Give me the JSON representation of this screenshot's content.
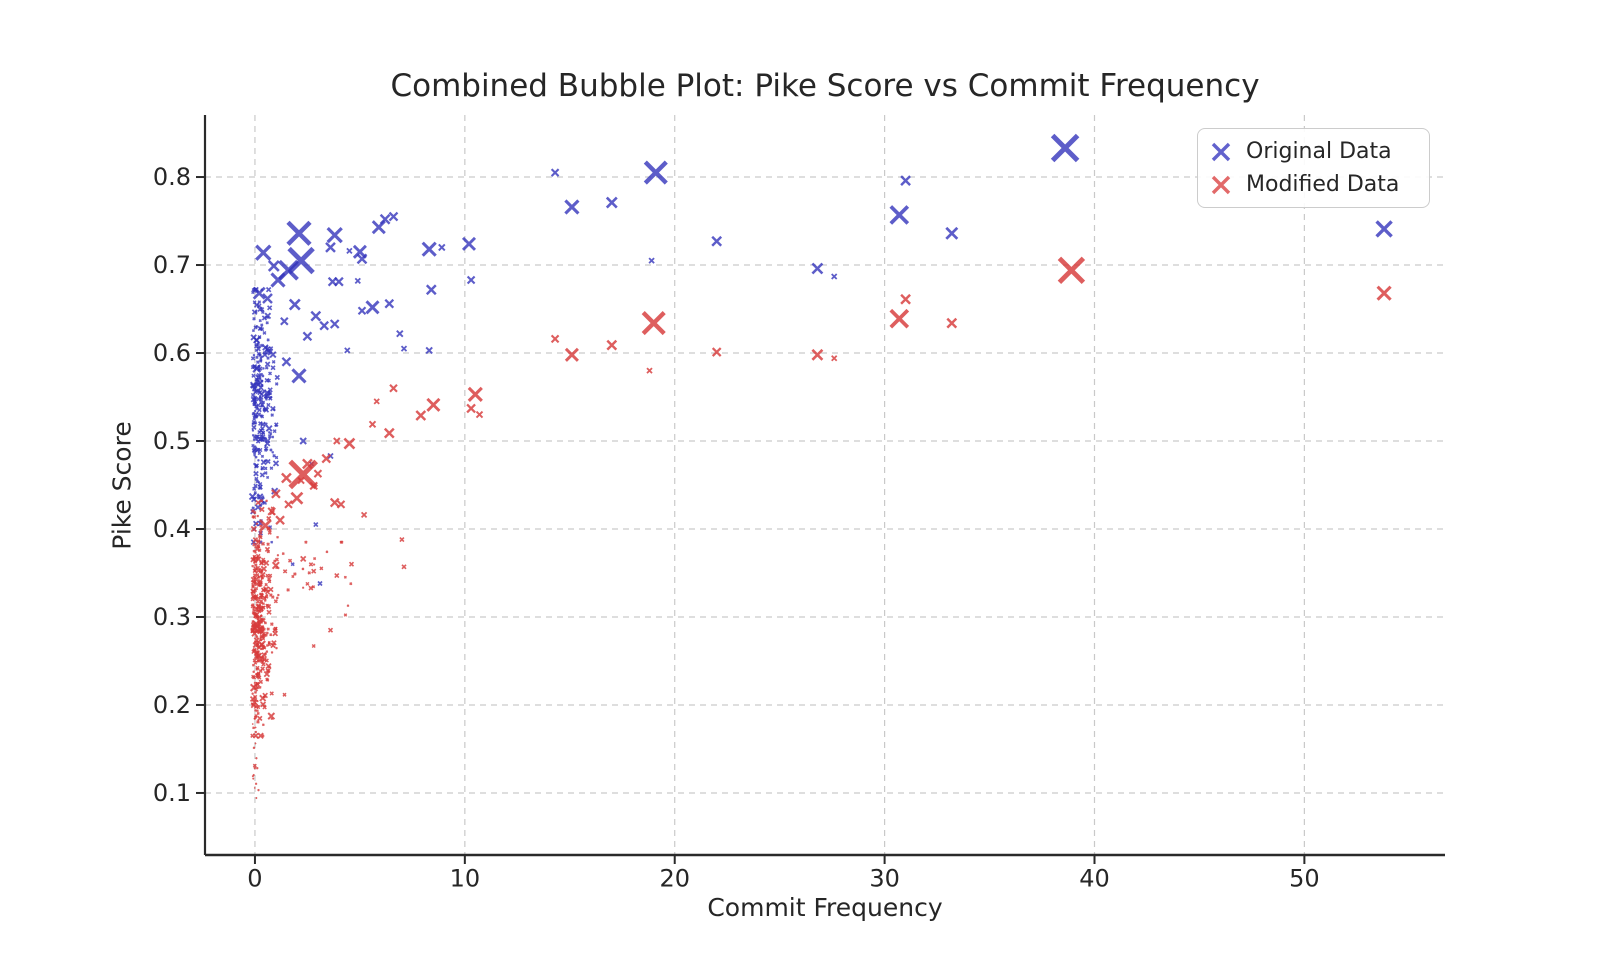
{
  "chart_data": {
    "type": "scatter",
    "title": "Combined Bubble Plot: Pike Score vs Commit Frequency",
    "xlabel": "Commit Frequency",
    "ylabel": "Pike Score",
    "axes": {
      "xlim": [
        -2.38,
        56.7
      ],
      "ylim": [
        0.0295,
        0.8705
      ],
      "x_tick_values": [
        0,
        10,
        20,
        30,
        40,
        50
      ],
      "x_tick_labels": [
        "0",
        "10",
        "20",
        "30",
        "40",
        "50"
      ],
      "y_tick_values": [
        0.1,
        0.2,
        0.3,
        0.4,
        0.5,
        0.6,
        0.7,
        0.8
      ],
      "y_tick_labels": [
        "0.1",
        "0.2",
        "0.3",
        "0.4",
        "0.5",
        "0.6",
        "0.7",
        "0.8"
      ],
      "grid": true,
      "grid_color": "#c9c9c9",
      "spine_color": "#2a2a2a"
    },
    "legend": {
      "position": "upper right",
      "items": [
        {
          "label": "Original Data",
          "color": "#4646c4",
          "marker": "x"
        },
        {
          "label": "Modified Data",
          "color": "#dd4f4f",
          "marker": "x"
        }
      ]
    },
    "series": [
      {
        "name": "Original Data",
        "color": "#3434bb",
        "opacity": 0.8,
        "marker": "x",
        "points": [
          [
            38.6,
            0.833,
            25
          ],
          [
            19.1,
            0.805,
            21
          ],
          [
            14.3,
            0.805,
            7
          ],
          [
            15.1,
            0.766,
            13
          ],
          [
            17.0,
            0.771,
            10
          ],
          [
            22.0,
            0.727,
            9
          ],
          [
            18.9,
            0.705,
            5
          ],
          [
            26.8,
            0.696,
            10
          ],
          [
            27.6,
            0.687,
            5
          ],
          [
            31.0,
            0.796,
            9
          ],
          [
            30.7,
            0.757,
            17
          ],
          [
            33.2,
            0.736,
            11
          ],
          [
            53.8,
            0.741,
            15
          ],
          [
            6.2,
            0.752,
            9
          ],
          [
            5.9,
            0.743,
            12
          ],
          [
            6.6,
            0.755,
            8
          ],
          [
            3.8,
            0.734,
            14
          ],
          [
            2.1,
            0.736,
            22
          ],
          [
            3.6,
            0.72,
            9
          ],
          [
            4.5,
            0.716,
            5
          ],
          [
            5.0,
            0.715,
            12
          ],
          [
            5.1,
            0.707,
            9
          ],
          [
            8.3,
            0.718,
            13
          ],
          [
            8.9,
            0.72,
            6
          ],
          [
            10.2,
            0.724,
            12
          ],
          [
            3.7,
            0.681,
            8
          ],
          [
            4.0,
            0.681,
            8
          ],
          [
            4.9,
            0.682,
            5
          ],
          [
            8.4,
            0.672,
            9
          ],
          [
            10.3,
            0.683,
            7
          ],
          [
            5.6,
            0.652,
            12
          ],
          [
            6.4,
            0.656,
            8
          ],
          [
            5.1,
            0.648,
            7
          ],
          [
            6.9,
            0.622,
            6
          ],
          [
            7.1,
            0.605,
            5
          ],
          [
            8.3,
            0.603,
            6
          ],
          [
            2.2,
            0.705,
            24
          ],
          [
            1.6,
            0.694,
            18
          ],
          [
            1.1,
            0.683,
            13
          ],
          [
            0.4,
            0.714,
            14
          ],
          [
            0.9,
            0.699,
            10
          ],
          [
            2.9,
            0.642,
            9
          ],
          [
            1.9,
            0.655,
            10
          ],
          [
            0.2,
            0.668,
            11
          ],
          [
            0.6,
            0.662,
            9
          ],
          [
            3.3,
            0.631,
            8
          ],
          [
            3.8,
            0.633,
            8
          ],
          [
            2.5,
            0.619,
            8
          ],
          [
            1.4,
            0.636,
            7
          ],
          [
            2.1,
            0.574,
            13
          ],
          [
            1.5,
            0.59,
            8
          ],
          [
            2.3,
            0.5,
            6
          ],
          [
            3.6,
            0.483,
            5
          ],
          [
            4.4,
            0.603,
            5
          ],
          [
            2.7,
            0.474,
            4
          ],
          [
            2.9,
            0.405,
            4
          ],
          [
            3.1,
            0.338,
            4
          ],
          [
            1.8,
            0.36,
            3
          ]
        ],
        "clusters": [
          {
            "seed": 101,
            "n": 270,
            "x_shift": -0.12,
            "x_scale": 0.5,
            "x_min": -0.25,
            "x_max": 2.4,
            "y_mean": 0.535,
            "y_sd": 0.068,
            "y_min": 0.385,
            "y_max": 0.672,
            "s_base": 1.6,
            "s_scale": 1.9,
            "s_max": 8
          }
        ]
      },
      {
        "name": "Modified Data",
        "color": "#d73b3b",
        "opacity": 0.82,
        "marker": "x",
        "points": [
          [
            38.9,
            0.694,
            24
          ],
          [
            19.0,
            0.634,
            21
          ],
          [
            14.3,
            0.616,
            7
          ],
          [
            15.1,
            0.598,
            12
          ],
          [
            17.0,
            0.609,
            9
          ],
          [
            18.8,
            0.58,
            5
          ],
          [
            22.0,
            0.601,
            8
          ],
          [
            26.8,
            0.598,
            10
          ],
          [
            27.6,
            0.594,
            5
          ],
          [
            31.0,
            0.661,
            9
          ],
          [
            30.7,
            0.639,
            17
          ],
          [
            33.2,
            0.634,
            9
          ],
          [
            53.8,
            0.668,
            13
          ],
          [
            10.5,
            0.553,
            13
          ],
          [
            10.3,
            0.537,
            8
          ],
          [
            10.7,
            0.53,
            6
          ],
          [
            8.5,
            0.541,
            12
          ],
          [
            7.9,
            0.529,
            9
          ],
          [
            6.6,
            0.56,
            7
          ],
          [
            5.8,
            0.545,
            5
          ],
          [
            6.4,
            0.509,
            9
          ],
          [
            5.6,
            0.519,
            6
          ],
          [
            4.5,
            0.497,
            10
          ],
          [
            3.9,
            0.5,
            6
          ],
          [
            3.4,
            0.48,
            8
          ],
          [
            2.5,
            0.474,
            9
          ],
          [
            3.0,
            0.463,
            7
          ],
          [
            2.3,
            0.462,
            26
          ],
          [
            1.5,
            0.458,
            9
          ],
          [
            2.2,
            0.455,
            6
          ],
          [
            2.8,
            0.449,
            7
          ],
          [
            2.0,
            0.435,
            11
          ],
          [
            1.6,
            0.428,
            7
          ],
          [
            1.0,
            0.44,
            8
          ],
          [
            0.8,
            0.42,
            7
          ],
          [
            1.2,
            0.41,
            8
          ],
          [
            0.5,
            0.404,
            11
          ],
          [
            3.8,
            0.43,
            8
          ],
          [
            4.1,
            0.428,
            7
          ],
          [
            5.2,
            0.416,
            5
          ],
          [
            7.0,
            0.388,
            4
          ],
          [
            2.3,
            0.366,
            5
          ],
          [
            3.9,
            0.347,
            4
          ],
          [
            2.8,
            0.352,
            4
          ],
          [
            7.1,
            0.357,
            4
          ],
          [
            4.6,
            0.36,
            4
          ],
          [
            3.6,
            0.285,
            4
          ],
          [
            2.8,
            0.267,
            3
          ]
        ],
        "clusters": [
          {
            "seed": 202,
            "n": 310,
            "x_shift": -0.12,
            "x_scale": 0.55,
            "x_min": -0.25,
            "x_max": 2.8,
            "y_mean": 0.308,
            "y_sd": 0.058,
            "y_min": 0.165,
            "y_max": 0.432,
            "s_base": 1.6,
            "s_scale": 1.7,
            "s_max": 7
          },
          {
            "seed": 303,
            "n": 26,
            "x_uniform": [
              0.3,
              4.6
            ],
            "y_mean": 0.352,
            "y_sd": 0.018,
            "y_min": 0.3,
            "y_max": 0.385,
            "s_base": 1.5,
            "s_scale": 1.2,
            "s_max": 4.5
          },
          {
            "seed": 404,
            "n": 44,
            "x_shift": 0.03,
            "x_scale": 0.07,
            "x_sym": true,
            "x_min": -0.12,
            "x_max": 0.35,
            "y_uniform": [
              0.088,
              0.235
            ],
            "s_base": 1.0,
            "s_scale": 1.0,
            "s_max": 3
          }
        ]
      }
    ]
  }
}
